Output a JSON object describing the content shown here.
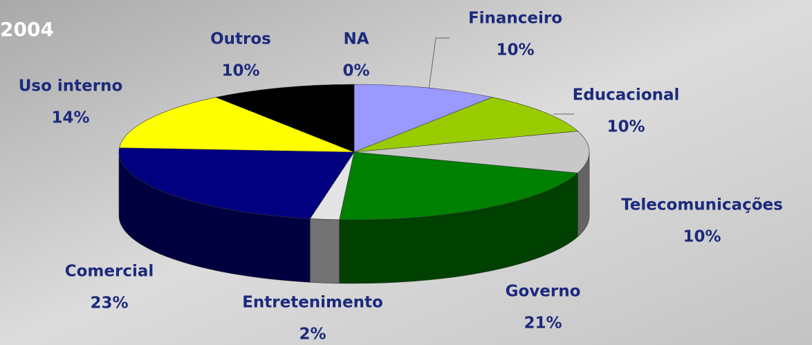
{
  "chart_data": {
    "type": "pie3d",
    "title": "2004",
    "categories": [
      "Financeiro",
      "Educacional",
      "Telecomunicações",
      "Governo",
      "Entretenimento",
      "Comercial",
      "Uso interno",
      "Outros",
      "NA"
    ],
    "values": [
      10,
      10,
      10,
      21,
      2,
      23,
      14,
      10,
      0
    ],
    "value_labels": [
      "10%",
      "10%",
      "10%",
      "21%",
      "2%",
      "23%",
      "14%",
      "10%",
      "0%"
    ],
    "colors": [
      "#9999ff",
      "#99cc00",
      "#c8c8c8",
      "#008000",
      "#e4e4e4",
      "#000080",
      "#ffff00",
      "#000000",
      "#808080"
    ]
  }
}
